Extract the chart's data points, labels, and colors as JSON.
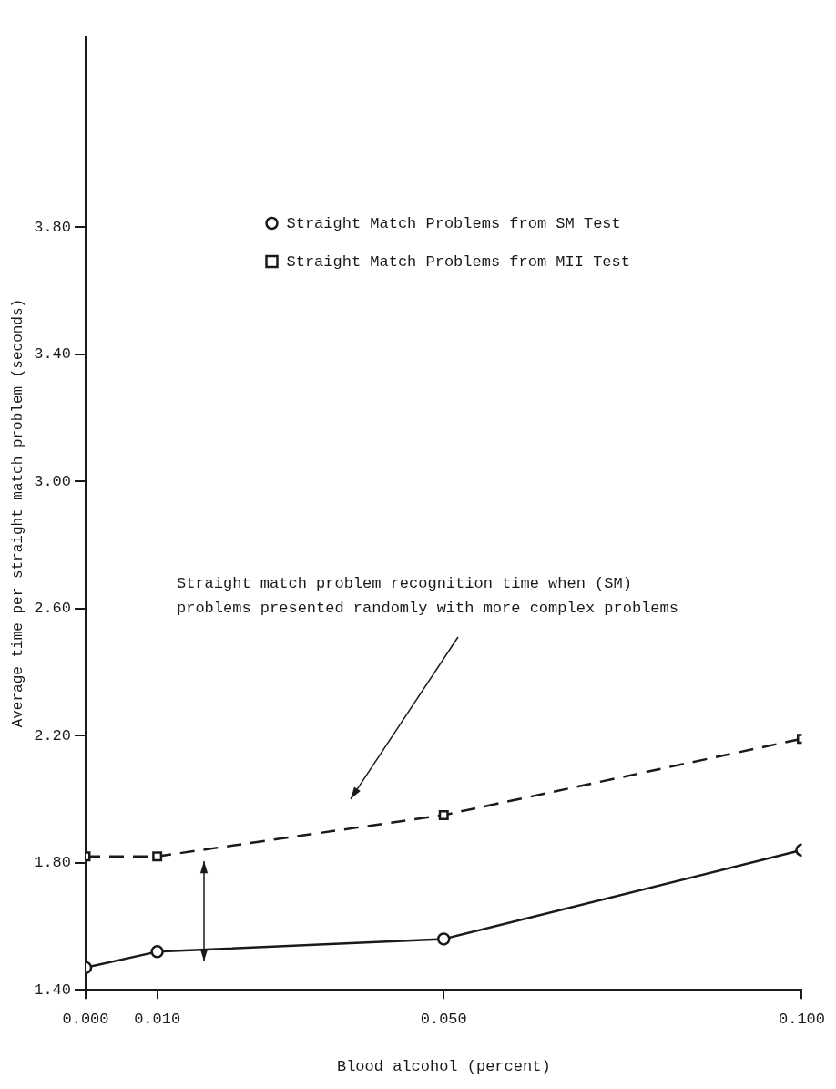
{
  "chart_data": {
    "type": "line",
    "xlabel": "Blood alcohol (percent)",
    "ylabel": "Average time per straight match problem (seconds)",
    "x": [
      0,
      0.01,
      0.05,
      0.1
    ],
    "xlim": [
      0,
      0.1
    ],
    "xticks": [
      {
        "value": 0,
        "label": "0.000"
      },
      {
        "value": 0.01,
        "label": "0.010"
      },
      {
        "value": 0.05,
        "label": "0.050"
      },
      {
        "value": 0.1,
        "label": "0.100"
      }
    ],
    "ylim": [
      1.4,
      4.4
    ],
    "yticks": [
      {
        "value": 1.4,
        "label": "1.40"
      },
      {
        "value": 1.8,
        "label": "1.80"
      },
      {
        "value": 2.2,
        "label": "2.20"
      },
      {
        "value": 2.6,
        "label": "2.60"
      },
      {
        "value": 3.0,
        "label": "3.00"
      },
      {
        "value": 3.4,
        "label": "3.40"
      },
      {
        "value": 3.8,
        "label": "3.80"
      }
    ],
    "grid": false,
    "legend": "top",
    "series": [
      {
        "name": "Straight Match Problems from SM Test",
        "color": "#1a1a1a",
        "marker": "circle",
        "line_style": "solid",
        "values": [
          1.47,
          1.52,
          1.56,
          1.84
        ]
      },
      {
        "name": "Straight Match Problems from MII Test",
        "color": "#1a1a1a",
        "marker": "square",
        "line_style": "dashed",
        "values": [
          1.82,
          1.82,
          1.95,
          2.19
        ]
      }
    ],
    "annotations": [
      "Straight match problem recognition time when (SM)\nproblems presented randomly with more complex problems"
    ]
  }
}
